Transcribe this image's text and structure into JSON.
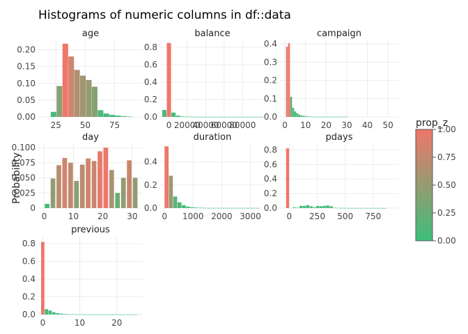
{
  "chart_title": "Histograms of numeric columns in df::data",
  "y_axis_label": "Probability",
  "legend": {
    "title": "prop_z",
    "ticks": [
      "1.00",
      "0.75",
      "0.50",
      "0.25",
      "0.00"
    ],
    "color_low": "#3cbf7a",
    "color_high": "#f0766a"
  },
  "chart_data": [
    {
      "type": "bar",
      "title": "age",
      "xlim": [
        10,
        99
      ],
      "ylim": [
        0,
        0.228
      ],
      "xticks": [
        25,
        50,
        75
      ],
      "yticks": [
        0.0,
        0.05,
        0.1,
        0.15,
        0.2
      ],
      "ytick_labels": [
        "0.00",
        "0.05",
        "0.10",
        "0.15",
        "0.20"
      ],
      "bar_width": 4.8,
      "bars": [
        {
          "x": 23,
          "y": 0.015,
          "z": 0.07
        },
        {
          "x": 28,
          "y": 0.092,
          "z": 0.42
        },
        {
          "x": 33,
          "y": 0.218,
          "z": 1.0
        },
        {
          "x": 38,
          "y": 0.18,
          "z": 0.82
        },
        {
          "x": 43,
          "y": 0.14,
          "z": 0.64
        },
        {
          "x": 48,
          "y": 0.123,
          "z": 0.56
        },
        {
          "x": 53,
          "y": 0.11,
          "z": 0.5
        },
        {
          "x": 58,
          "y": 0.09,
          "z": 0.41
        },
        {
          "x": 63,
          "y": 0.02,
          "z": 0.09
        },
        {
          "x": 68,
          "y": 0.01,
          "z": 0.05
        },
        {
          "x": 73,
          "y": 0.006,
          "z": 0.03
        },
        {
          "x": 78,
          "y": 0.004,
          "z": 0.02
        },
        {
          "x": 83,
          "y": 0.002,
          "z": 0.01
        },
        {
          "x": 88,
          "y": 0.001,
          "z": 0.0
        }
      ]
    },
    {
      "type": "bar",
      "title": "balance",
      "xlim": [
        -9500,
        104000
      ],
      "ylim": [
        0,
        0.88
      ],
      "xticks": [
        0,
        20000,
        40000,
        60000,
        80000
      ],
      "xtick_labels": [
        "0",
        "20000",
        "40000",
        "60000",
        "80000"
      ],
      "yticks": [
        0.0,
        0.2,
        0.4,
        0.6,
        0.8
      ],
      "ytick_labels": [
        "0.0",
        "0.2",
        "0.4",
        "0.6",
        "0.8"
      ],
      "bar_width": 4600,
      "bars": [
        {
          "x": -5000,
          "y": 0.08,
          "z": 0.09
        },
        {
          "x": 0,
          "y": 0.85,
          "z": 1.0
        },
        {
          "x": 5000,
          "y": 0.05,
          "z": 0.06
        },
        {
          "x": 10000,
          "y": 0.015,
          "z": 0.02
        },
        {
          "x": 15000,
          "y": 0.006,
          "z": 0.01
        },
        {
          "x": 20000,
          "y": 0.003,
          "z": 0.0
        },
        {
          "x": 25000,
          "y": 0.002,
          "z": 0.0
        },
        {
          "x": 30000,
          "y": 0.001,
          "z": 0.0
        },
        {
          "x": 35000,
          "y": 0.001,
          "z": 0.0
        },
        {
          "x": 40000,
          "y": 0.001,
          "z": 0.0
        },
        {
          "x": 45000,
          "y": 0.001,
          "z": 0.0
        },
        {
          "x": 50000,
          "y": 0.001,
          "z": 0.0
        },
        {
          "x": 55000,
          "y": 0.001,
          "z": 0.0
        },
        {
          "x": 60000,
          "y": 0.001,
          "z": 0.0
        },
        {
          "x": 65000,
          "y": 0.001,
          "z": 0.0
        },
        {
          "x": 70000,
          "y": 0.001,
          "z": 0.0
        },
        {
          "x": 75000,
          "y": 0.001,
          "z": 0.0
        },
        {
          "x": 80000,
          "y": 0.001,
          "z": 0.0
        },
        {
          "x": 85000,
          "y": 0.001,
          "z": 0.0
        },
        {
          "x": 90000,
          "y": 0.001,
          "z": 0.0
        },
        {
          "x": 95000,
          "y": 0.001,
          "z": 0.0
        },
        {
          "x": 100000,
          "y": 0.001,
          "z": 0.0
        }
      ]
    },
    {
      "type": "bar",
      "title": "campaign",
      "xlim": [
        -2.4,
        55
      ],
      "ylim": [
        0,
        0.42
      ],
      "xticks": [
        0,
        10,
        20,
        30,
        40,
        50
      ],
      "yticks": [
        0.0,
        0.1,
        0.2,
        0.3,
        0.4
      ],
      "ytick_labels": [
        "0.0",
        "0.1",
        "0.2",
        "0.3",
        "0.4"
      ],
      "bar_width": 0.92,
      "bars": [
        {
          "x": 1,
          "y": 0.385,
          "z": 0.95
        },
        {
          "x": 2,
          "y": 0.405,
          "z": 1.0
        },
        {
          "x": 3,
          "y": 0.11,
          "z": 0.27
        },
        {
          "x": 4,
          "y": 0.05,
          "z": 0.12
        },
        {
          "x": 5,
          "y": 0.03,
          "z": 0.08
        },
        {
          "x": 6,
          "y": 0.02,
          "z": 0.05
        },
        {
          "x": 7,
          "y": 0.012,
          "z": 0.03
        },
        {
          "x": 8,
          "y": 0.008,
          "z": 0.02
        },
        {
          "x": 9,
          "y": 0.006,
          "z": 0.01
        },
        {
          "x": 10,
          "y": 0.004,
          "z": 0.01
        },
        {
          "x": 11,
          "y": 0.003,
          "z": 0.0
        },
        {
          "x": 12,
          "y": 0.002,
          "z": 0.0
        },
        {
          "x": 13,
          "y": 0.002,
          "z": 0.0
        },
        {
          "x": 14,
          "y": 0.001,
          "z": 0.0
        },
        {
          "x": 15,
          "y": 0.001,
          "z": 0.0
        },
        {
          "x": 16,
          "y": 0.001,
          "z": 0.0
        },
        {
          "x": 17,
          "y": 0.001,
          "z": 0.0
        },
        {
          "x": 18,
          "y": 0.001,
          "z": 0.0
        },
        {
          "x": 19,
          "y": 0.001,
          "z": 0.0
        },
        {
          "x": 20,
          "y": 0.001,
          "z": 0.0
        },
        {
          "x": 21,
          "y": 0.001,
          "z": 0.0
        },
        {
          "x": 22,
          "y": 0.001,
          "z": 0.0
        },
        {
          "x": 23,
          "y": 0.001,
          "z": 0.0
        },
        {
          "x": 24,
          "y": 0.001,
          "z": 0.0
        },
        {
          "x": 25,
          "y": 0.001,
          "z": 0.0
        },
        {
          "x": 26,
          "y": 0.001,
          "z": 0.0
        },
        {
          "x": 27,
          "y": 0.001,
          "z": 0.0
        },
        {
          "x": 28,
          "y": 0.001,
          "z": 0.0
        },
        {
          "x": 29,
          "y": 0.001,
          "z": 0.0
        },
        {
          "x": 30,
          "y": 0.001,
          "z": 0.0
        }
      ]
    },
    {
      "type": "bar",
      "title": "day",
      "xlim": [
        -2.0,
        33.6
      ],
      "ylim": [
        0,
        0.106
      ],
      "xticks": [
        0,
        10,
        20,
        30
      ],
      "yticks": [
        0.0,
        0.025,
        0.05,
        0.075,
        0.1
      ],
      "ytick_labels": [
        "0",
        "0.025",
        "0.050",
        "0.075",
        "0.100"
      ],
      "bar_width": 1.6,
      "bars": [
        {
          "x": 1,
          "y": 0.007,
          "z": 0.05
        },
        {
          "x": 3,
          "y": 0.049,
          "z": 0.48
        },
        {
          "x": 5,
          "y": 0.071,
          "z": 0.7
        },
        {
          "x": 7,
          "y": 0.083,
          "z": 0.82
        },
        {
          "x": 9,
          "y": 0.075,
          "z": 0.74
        },
        {
          "x": 11,
          "y": 0.045,
          "z": 0.44
        },
        {
          "x": 13,
          "y": 0.072,
          "z": 0.71
        },
        {
          "x": 15,
          "y": 0.082,
          "z": 0.81
        },
        {
          "x": 17,
          "y": 0.078,
          "z": 0.77
        },
        {
          "x": 19,
          "y": 0.094,
          "z": 0.93
        },
        {
          "x": 21,
          "y": 0.1,
          "z": 1.0
        },
        {
          "x": 23,
          "y": 0.063,
          "z": 0.62
        },
        {
          "x": 25,
          "y": 0.025,
          "z": 0.24
        },
        {
          "x": 27,
          "y": 0.05,
          "z": 0.49
        },
        {
          "x": 29,
          "y": 0.079,
          "z": 0.78
        },
        {
          "x": 31,
          "y": 0.05,
          "z": 0.49
        }
      ]
    },
    {
      "type": "bar",
      "title": "duration",
      "xlim": [
        -150,
        3500
      ],
      "ylim": [
        0,
        0.555
      ],
      "xticks": [
        0,
        1000,
        2000,
        3000
      ],
      "yticks": [
        0.0,
        0.2,
        0.4
      ],
      "ytick_labels": [
        "0.0",
        "0.2",
        "0.4"
      ],
      "bar_width": 138,
      "bars": [
        {
          "x": 75,
          "y": 0.535,
          "z": 1.0
        },
        {
          "x": 225,
          "y": 0.28,
          "z": 0.52
        },
        {
          "x": 375,
          "y": 0.1,
          "z": 0.19
        },
        {
          "x": 525,
          "y": 0.05,
          "z": 0.09
        },
        {
          "x": 675,
          "y": 0.025,
          "z": 0.05
        },
        {
          "x": 825,
          "y": 0.012,
          "z": 0.02
        },
        {
          "x": 975,
          "y": 0.007,
          "z": 0.01
        },
        {
          "x": 1125,
          "y": 0.004,
          "z": 0.01
        },
        {
          "x": 1275,
          "y": 0.003,
          "z": 0.0
        },
        {
          "x": 1425,
          "y": 0.002,
          "z": 0.0
        },
        {
          "x": 1575,
          "y": 0.001,
          "z": 0.0
        },
        {
          "x": 1725,
          "y": 0.001,
          "z": 0.0
        },
        {
          "x": 1875,
          "y": 0.001,
          "z": 0.0
        },
        {
          "x": 2025,
          "y": 0.001,
          "z": 0.0
        },
        {
          "x": 2175,
          "y": 0.001,
          "z": 0.0
        },
        {
          "x": 2325,
          "y": 0.001,
          "z": 0.0
        },
        {
          "x": 2475,
          "y": 0.001,
          "z": 0.0
        },
        {
          "x": 2625,
          "y": 0.001,
          "z": 0.0
        },
        {
          "x": 2775,
          "y": 0.001,
          "z": 0.0
        },
        {
          "x": 2925,
          "y": 0.001,
          "z": 0.0
        },
        {
          "x": 3075,
          "y": 0.001,
          "z": 0.0
        },
        {
          "x": 3225,
          "y": 0.001,
          "z": 0.0
        }
      ]
    },
    {
      "type": "bar",
      "title": "pdays",
      "xlim": [
        -83,
        975
      ],
      "ylim": [
        0,
        0.88
      ],
      "xticks": [
        0,
        250,
        500,
        750
      ],
      "yticks": [
        0.0,
        0.2,
        0.4,
        0.6,
        0.8
      ],
      "ytick_labels": [
        "0.0",
        "0.2",
        "0.4",
        "0.6",
        "0.8"
      ],
      "bar_width": 27,
      "bars": [
        {
          "x": -15,
          "y": 0.82,
          "z": 1.0
        },
        {
          "x": 45,
          "y": 0.01,
          "z": 0.01
        },
        {
          "x": 75,
          "y": 0.005,
          "z": 0.01
        },
        {
          "x": 105,
          "y": 0.03,
          "z": 0.04
        },
        {
          "x": 135,
          "y": 0.03,
          "z": 0.04
        },
        {
          "x": 165,
          "y": 0.04,
          "z": 0.05
        },
        {
          "x": 195,
          "y": 0.025,
          "z": 0.03
        },
        {
          "x": 225,
          "y": 0.01,
          "z": 0.01
        },
        {
          "x": 255,
          "y": 0.03,
          "z": 0.04
        },
        {
          "x": 285,
          "y": 0.025,
          "z": 0.03
        },
        {
          "x": 315,
          "y": 0.03,
          "z": 0.04
        },
        {
          "x": 345,
          "y": 0.035,
          "z": 0.04
        },
        {
          "x": 375,
          "y": 0.025,
          "z": 0.03
        },
        {
          "x": 405,
          "y": 0.005,
          "z": 0.01
        },
        {
          "x": 435,
          "y": 0.003,
          "z": 0.0
        },
        {
          "x": 465,
          "y": 0.002,
          "z": 0.0
        },
        {
          "x": 495,
          "y": 0.002,
          "z": 0.0
        },
        {
          "x": 525,
          "y": 0.001,
          "z": 0.0
        },
        {
          "x": 555,
          "y": 0.001,
          "z": 0.0
        },
        {
          "x": 585,
          "y": 0.001,
          "z": 0.0
        },
        {
          "x": 615,
          "y": 0.001,
          "z": 0.0
        },
        {
          "x": 645,
          "y": 0.001,
          "z": 0.0
        },
        {
          "x": 675,
          "y": 0.001,
          "z": 0.0
        },
        {
          "x": 705,
          "y": 0.001,
          "z": 0.0
        },
        {
          "x": 735,
          "y": 0.001,
          "z": 0.0
        },
        {
          "x": 765,
          "y": 0.001,
          "z": 0.0
        },
        {
          "x": 795,
          "y": 0.001,
          "z": 0.0
        },
        {
          "x": 825,
          "y": 0.001,
          "z": 0.0
        },
        {
          "x": 855,
          "y": 0.001,
          "z": 0.0
        }
      ]
    },
    {
      "type": "bar",
      "title": "previous",
      "xlim": [
        -1.2,
        27
      ],
      "ylim": [
        0,
        0.88
      ],
      "xticks": [
        0,
        10,
        20
      ],
      "yticks": [
        0.0,
        0.2,
        0.4,
        0.6,
        0.8
      ],
      "ytick_labels": [
        "0.0",
        "0.2",
        "0.4",
        "0.6",
        "0.8"
      ],
      "bar_width": 0.9,
      "bars": [
        {
          "x": 0,
          "y": 0.82,
          "z": 1.0
        },
        {
          "x": 1,
          "y": 0.06,
          "z": 0.07
        },
        {
          "x": 2,
          "y": 0.045,
          "z": 0.05
        },
        {
          "x": 3,
          "y": 0.025,
          "z": 0.03
        },
        {
          "x": 4,
          "y": 0.015,
          "z": 0.02
        },
        {
          "x": 5,
          "y": 0.01,
          "z": 0.01
        },
        {
          "x": 6,
          "y": 0.006,
          "z": 0.01
        },
        {
          "x": 7,
          "y": 0.004,
          "z": 0.0
        },
        {
          "x": 8,
          "y": 0.003,
          "z": 0.0
        },
        {
          "x": 9,
          "y": 0.002,
          "z": 0.0
        },
        {
          "x": 10,
          "y": 0.002,
          "z": 0.0
        },
        {
          "x": 11,
          "y": 0.001,
          "z": 0.0
        },
        {
          "x": 12,
          "y": 0.001,
          "z": 0.0
        },
        {
          "x": 13,
          "y": 0.001,
          "z": 0.0
        },
        {
          "x": 14,
          "y": 0.001,
          "z": 0.0
        },
        {
          "x": 15,
          "y": 0.001,
          "z": 0.0
        },
        {
          "x": 16,
          "y": 0.001,
          "z": 0.0
        },
        {
          "x": 17,
          "y": 0.001,
          "z": 0.0
        },
        {
          "x": 18,
          "y": 0.001,
          "z": 0.0
        },
        {
          "x": 19,
          "y": 0.001,
          "z": 0.0
        },
        {
          "x": 20,
          "y": 0.001,
          "z": 0.0
        },
        {
          "x": 21,
          "y": 0.001,
          "z": 0.0
        },
        {
          "x": 22,
          "y": 0.001,
          "z": 0.0
        },
        {
          "x": 23,
          "y": 0.001,
          "z": 0.0
        },
        {
          "x": 24,
          "y": 0.001,
          "z": 0.0
        },
        {
          "x": 25,
          "y": 0.001,
          "z": 0.0
        }
      ]
    }
  ]
}
